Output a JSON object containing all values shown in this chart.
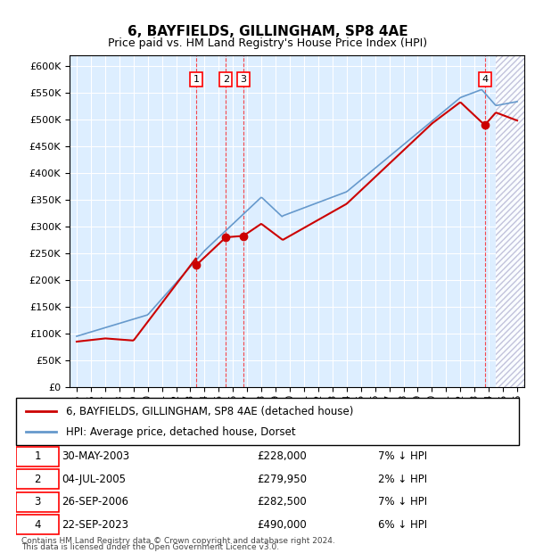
{
  "title1": "6, BAYFIELDS, GILLINGHAM, SP8 4AE",
  "title2": "Price paid vs. HM Land Registry's House Price Index (HPI)",
  "ylabel": "",
  "xlim_start": 1995.0,
  "xlim_end": 2026.5,
  "ylim": [
    0,
    620000
  ],
  "yticks": [
    0,
    50000,
    100000,
    150000,
    200000,
    250000,
    300000,
    350000,
    400000,
    450000,
    500000,
    550000,
    600000
  ],
  "legend_line1": "6, BAYFIELDS, GILLINGHAM, SP8 4AE (detached house)",
  "legend_line2": "HPI: Average price, detached house, Dorset",
  "transactions": [
    {
      "num": 1,
      "date": "30-MAY-2003",
      "price": 228000,
      "pct": "7%",
      "x": 2003.42
    },
    {
      "num": 2,
      "date": "04-JUL-2005",
      "price": 279950,
      "pct": "2%",
      "x": 2005.5
    },
    {
      "num": 3,
      "date": "26-SEP-2006",
      "price": 282500,
      "pct": "7%",
      "x": 2006.73
    },
    {
      "num": 4,
      "date": "22-SEP-2023",
      "price": 490000,
      "pct": "6%",
      "x": 2023.73
    }
  ],
  "footer1": "Contains HM Land Registry data © Crown copyright and database right 2024.",
  "footer2": "This data is licensed under the Open Government Licence v3.0.",
  "hpi_color": "#6699cc",
  "price_color": "#cc0000",
  "bg_color": "#ddeeff",
  "hatching_color": "#ccccdd"
}
